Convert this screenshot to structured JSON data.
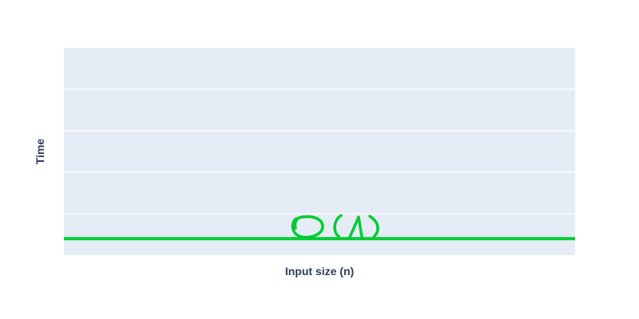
{
  "chart_data": {
    "type": "line",
    "title": "",
    "xlabel": "Input size (n)",
    "ylabel": "Time",
    "x": [
      0,
      1
    ],
    "ylim": [
      0,
      5
    ],
    "grid": true,
    "series": [
      {
        "values": [
          0.4,
          0.4
        ],
        "color": "#00cc33",
        "annotation": "O(1)"
      }
    ],
    "plot_background": "#e5ecf6",
    "grid_color": "#ffffff"
  }
}
